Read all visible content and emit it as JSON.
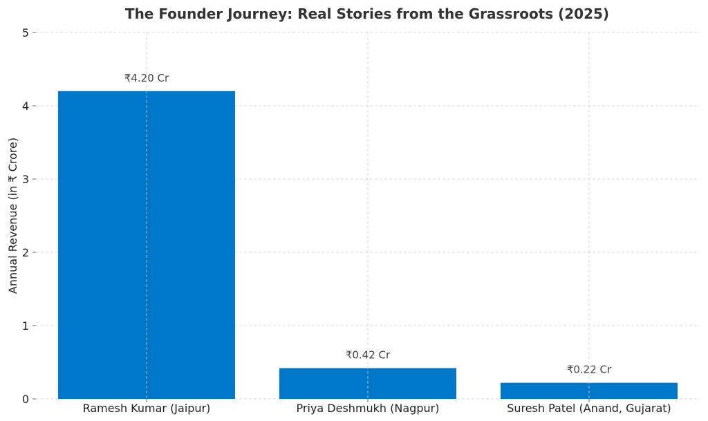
{
  "chart_data": {
    "type": "bar",
    "title": "The Founder Journey: Real Stories from the Grassroots (2025)",
    "xlabel": "",
    "ylabel": "Annual Revenue (in ₹ Crore)",
    "categories": [
      "Ramesh Kumar (Jaipur)",
      "Priya Deshmukh (Nagpur)",
      "Suresh Patel (Anand, Gujarat)"
    ],
    "values": [
      4.2,
      0.42,
      0.22
    ],
    "data_labels": [
      "₹4.20 Cr",
      "₹0.42 Cr",
      "₹0.22 Cr"
    ],
    "ylim": [
      0,
      5
    ],
    "yticks": [
      0,
      1,
      2,
      3,
      4,
      5
    ],
    "grid": true,
    "bar_color": "#0077c8"
  }
}
